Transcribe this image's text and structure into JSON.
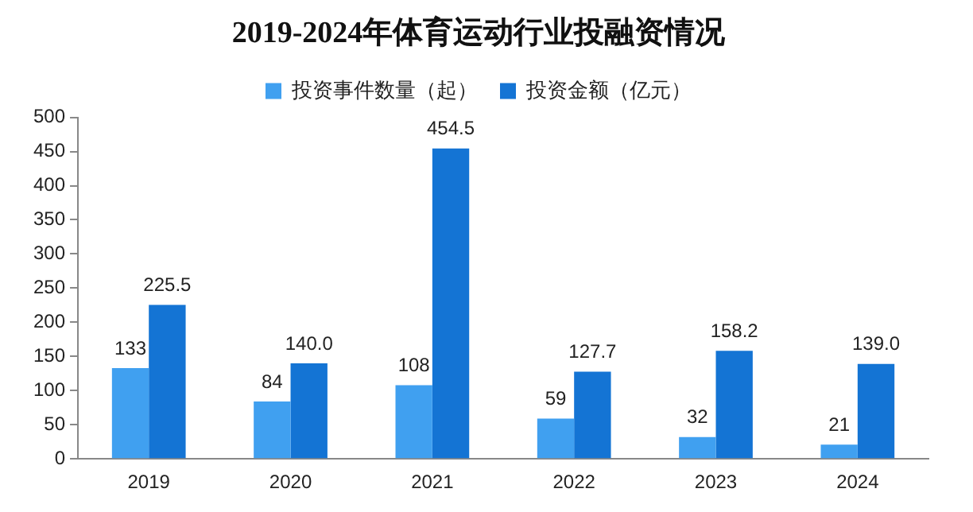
{
  "chart_data": {
    "type": "bar",
    "title": "2019-2024年体育运动行业投融资情况",
    "categories": [
      "2019",
      "2020",
      "2021",
      "2022",
      "2023",
      "2024"
    ],
    "series": [
      {
        "name": "投资事件数量（起）",
        "color": "#40a0f0",
        "values": [
          133,
          84,
          108,
          59,
          32,
          21
        ],
        "value_labels": [
          "133",
          "84",
          "108",
          "59",
          "32",
          "21"
        ]
      },
      {
        "name": "投资金额（亿元）",
        "color": "#1474d4",
        "values": [
          225.5,
          140.0,
          454.5,
          127.7,
          158.2,
          139.0
        ],
        "value_labels": [
          "225.5",
          "140.0",
          "454.5",
          "127.7",
          "158.2",
          "139.0"
        ]
      }
    ],
    "ylim": [
      0,
      500
    ],
    "yticks": [
      0,
      50,
      100,
      150,
      200,
      250,
      300,
      350,
      400,
      450,
      500
    ],
    "grid": false,
    "legend": "top"
  }
}
